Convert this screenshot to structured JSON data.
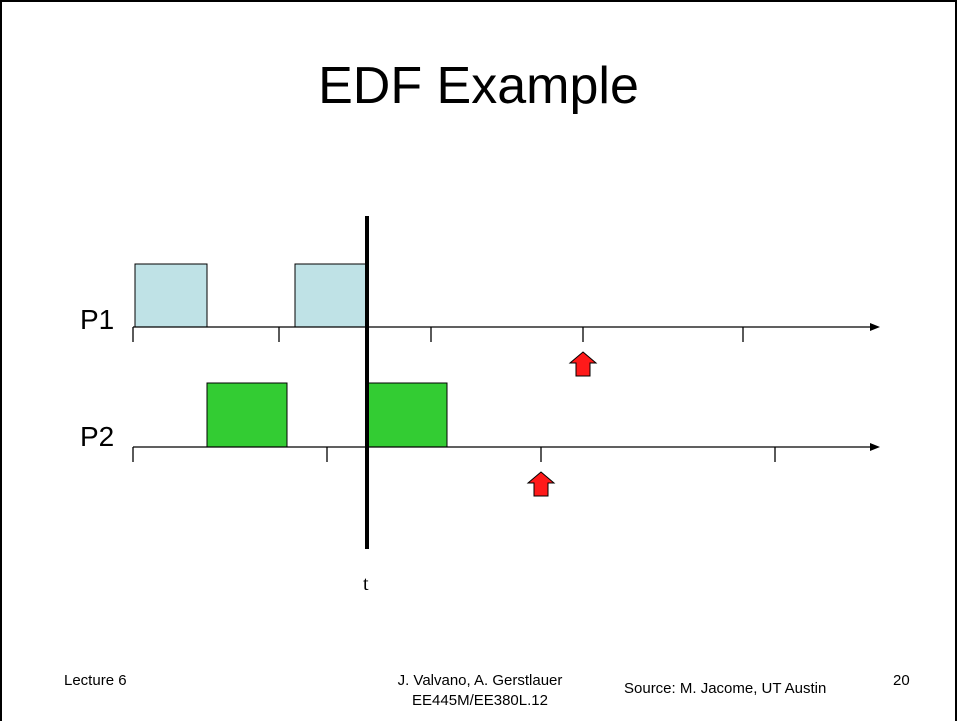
{
  "slide": {
    "title": "EDF Example",
    "footer": {
      "lecture": "Lecture 6",
      "authors": "J. Valvano, A. Gerstlauer",
      "course": "EE445M/EE380L.12",
      "source": "Source: M. Jacome, UT Austin",
      "page": "20"
    }
  },
  "diagram": {
    "processes": [
      {
        "label": "P1",
        "color": "#bfe2e6"
      },
      {
        "label": "P2",
        "color": "#33cc33"
      }
    ],
    "time_marker_label": "t",
    "deadline_arrow_color": "#ff1a1a"
  }
}
